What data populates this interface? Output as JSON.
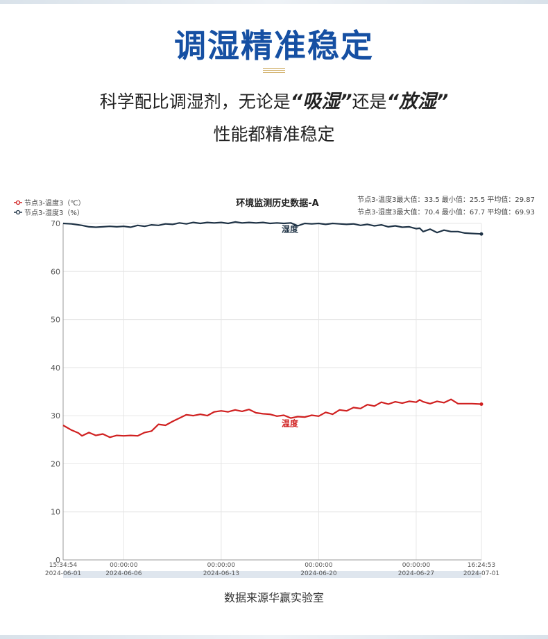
{
  "header": {
    "title": "调湿精准稳定",
    "subtitle_prefix": "科学配比调湿剂，无论是",
    "subtitle_em1": "“吸湿”",
    "subtitle_mid": "还是",
    "subtitle_em2": "“放湿”",
    "subtitle_line2": "性能都精准稳定"
  },
  "colors": {
    "title": "#1650a3",
    "temperature": "#d02020",
    "humidity": "#1f3346",
    "grid": "#e6e6e6"
  },
  "chart_data": {
    "type": "line",
    "title": "环境监测历史数据-A",
    "ylim": [
      0,
      70
    ],
    "y_ticks": [
      "0",
      "10",
      "20",
      "30",
      "40",
      "50",
      "60",
      "70"
    ],
    "x_range": [
      "2024-06-01 15:34:54",
      "2024-07-01 16:24:53"
    ],
    "x_ticks": [
      {
        "date": "2024-06-01",
        "time": "15:34:54"
      },
      {
        "date": "2024-06-06",
        "time": "00:00:00"
      },
      {
        "date": "2024-06-13",
        "time": "00:00:00"
      },
      {
        "date": "2024-06-20",
        "time": "00:00:00"
      },
      {
        "date": "2024-06-27",
        "time": "00:00:00"
      },
      {
        "date": "2024-07-01",
        "time": "16:24:53"
      }
    ],
    "grid": true,
    "legend_position": "top-left",
    "legend": [
      "节点3-温度3（℃）",
      "节点3-湿度3（%）"
    ],
    "stats": [
      "节点3-温度3最大值：33.5 最小值：25.5 平均值：29.87",
      "节点3-湿度3最大值：70.4 最小值：67.7 平均值：69.93"
    ],
    "series": [
      {
        "name": "节点3-温度3（℃）",
        "label": "温度",
        "x": [
          "2024-06-01 15:34",
          "2024-06-02 06:00",
          "2024-06-02 18:00",
          "2024-06-03 00:00",
          "2024-06-03 12:00",
          "2024-06-04 00:00",
          "2024-06-04 12:00",
          "2024-06-05 00:00",
          "2024-06-05 12:00",
          "2024-06-06 00:00",
          "2024-06-06 12:00",
          "2024-06-07 00:00",
          "2024-06-07 12:00",
          "2024-06-08 00:00",
          "2024-06-08 12:00",
          "2024-06-09 00:00",
          "2024-06-09 12:00",
          "2024-06-10 00:00",
          "2024-06-10 12:00",
          "2024-06-11 00:00",
          "2024-06-11 12:00",
          "2024-06-12 00:00",
          "2024-06-12 12:00",
          "2024-06-13 00:00",
          "2024-06-13 12:00",
          "2024-06-14 00:00",
          "2024-06-14 12:00",
          "2024-06-15 00:00",
          "2024-06-15 12:00",
          "2024-06-16 00:00",
          "2024-06-16 12:00",
          "2024-06-17 00:00",
          "2024-06-17 12:00",
          "2024-06-18 00:00",
          "2024-06-18 12:00",
          "2024-06-19 00:00",
          "2024-06-19 12:00",
          "2024-06-20 00:00",
          "2024-06-20 12:00",
          "2024-06-21 00:00",
          "2024-06-21 12:00",
          "2024-06-22 00:00",
          "2024-06-22 12:00",
          "2024-06-23 00:00",
          "2024-06-23 12:00",
          "2024-06-24 00:00",
          "2024-06-24 12:00",
          "2024-06-25 00:00",
          "2024-06-25 12:00",
          "2024-06-26 00:00",
          "2024-06-26 12:00",
          "2024-06-27 00:00",
          "2024-06-27 06:00",
          "2024-06-27 12:00",
          "2024-06-28 00:00",
          "2024-06-28 12:00",
          "2024-06-29 00:00",
          "2024-06-29 12:00",
          "2024-06-30 00:00",
          "2024-06-30 12:00",
          "2024-07-01 00:00",
          "2024-07-01 16:24"
        ],
        "values": [
          28.0,
          27.0,
          26.4,
          25.8,
          26.5,
          25.9,
          26.2,
          25.5,
          25.9,
          25.8,
          25.9,
          25.8,
          26.5,
          26.8,
          28.2,
          28.0,
          28.8,
          29.5,
          30.2,
          30.0,
          30.3,
          30.0,
          30.8,
          31.0,
          30.8,
          31.2,
          30.9,
          31.3,
          30.6,
          30.4,
          30.3,
          29.9,
          30.1,
          29.5,
          29.8,
          29.7,
          30.1,
          29.9,
          30.7,
          30.3,
          31.2,
          31.0,
          31.7,
          31.5,
          32.3,
          32.0,
          32.8,
          32.4,
          32.9,
          32.6,
          33.0,
          32.8,
          33.3,
          32.9,
          32.5,
          33.0,
          32.7,
          33.4,
          32.5,
          32.5,
          32.5,
          32.4
        ]
      },
      {
        "name": "节点3-湿度3（%）",
        "label": "湿度",
        "x": [
          "2024-06-01 15:34",
          "2024-06-02 06:00",
          "2024-06-02 18:00",
          "2024-06-03 00:00",
          "2024-06-03 12:00",
          "2024-06-04 00:00",
          "2024-06-04 12:00",
          "2024-06-05 00:00",
          "2024-06-05 12:00",
          "2024-06-06 00:00",
          "2024-06-06 12:00",
          "2024-06-07 00:00",
          "2024-06-07 12:00",
          "2024-06-08 00:00",
          "2024-06-08 12:00",
          "2024-06-09 00:00",
          "2024-06-09 12:00",
          "2024-06-10 00:00",
          "2024-06-10 12:00",
          "2024-06-11 00:00",
          "2024-06-11 12:00",
          "2024-06-12 00:00",
          "2024-06-12 12:00",
          "2024-06-13 00:00",
          "2024-06-13 12:00",
          "2024-06-14 00:00",
          "2024-06-14 12:00",
          "2024-06-15 00:00",
          "2024-06-15 12:00",
          "2024-06-16 00:00",
          "2024-06-16 12:00",
          "2024-06-17 00:00",
          "2024-06-17 12:00",
          "2024-06-18 00:00",
          "2024-06-18 12:00",
          "2024-06-19 00:00",
          "2024-06-19 12:00",
          "2024-06-20 00:00",
          "2024-06-20 12:00",
          "2024-06-21 00:00",
          "2024-06-21 12:00",
          "2024-06-22 00:00",
          "2024-06-22 12:00",
          "2024-06-23 00:00",
          "2024-06-23 12:00",
          "2024-06-24 00:00",
          "2024-06-24 12:00",
          "2024-06-25 00:00",
          "2024-06-25 12:00",
          "2024-06-26 00:00",
          "2024-06-26 12:00",
          "2024-06-27 00:00",
          "2024-06-27 06:00",
          "2024-06-27 12:00",
          "2024-06-28 00:00",
          "2024-06-28 12:00",
          "2024-06-29 00:00",
          "2024-06-29 12:00",
          "2024-06-30 00:00",
          "2024-06-30 12:00",
          "2024-07-01 00:00",
          "2024-07-01 16:24"
        ],
        "values": [
          70.0,
          69.9,
          69.7,
          69.6,
          69.3,
          69.2,
          69.3,
          69.4,
          69.3,
          69.4,
          69.2,
          69.6,
          69.4,
          69.7,
          69.6,
          69.9,
          69.8,
          70.1,
          69.9,
          70.2,
          70.0,
          70.2,
          70.1,
          70.2,
          70.0,
          70.3,
          70.1,
          70.2,
          70.1,
          70.2,
          70.0,
          70.1,
          70.0,
          70.1,
          69.5,
          70.0,
          69.9,
          70.0,
          69.8,
          70.0,
          69.9,
          69.8,
          69.9,
          69.6,
          69.8,
          69.5,
          69.7,
          69.3,
          69.5,
          69.2,
          69.3,
          68.9,
          69.0,
          68.3,
          68.8,
          68.1,
          68.6,
          68.3,
          68.3,
          68.0,
          67.9,
          67.8
        ]
      }
    ]
  },
  "footer": {
    "source": "数据来源华赢实验室"
  }
}
